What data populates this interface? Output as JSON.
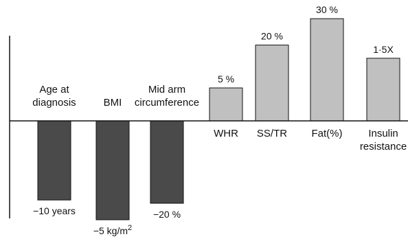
{
  "chart_data": {
    "type": "bar",
    "title": "",
    "xlabel": "",
    "ylabel": "",
    "categories": [
      "Age at diagnosis",
      "BMI",
      "Mid arm circumference",
      "WHR",
      "SS/TR",
      "Fat(%)",
      "Insulin resistance"
    ],
    "category_lines": [
      [
        "Age at",
        "diagnosis"
      ],
      [
        "BMI"
      ],
      [
        "Mid arm",
        "circumference"
      ],
      [
        "WHR"
      ],
      [
        "SS/TR"
      ],
      [
        "Fat(%)"
      ],
      [
        "Insulin",
        "resistance"
      ]
    ],
    "value_labels": [
      "−10 years",
      "−5 kg/m",
      "−20 %",
      "5 %",
      "20 %",
      "30 %",
      "1·5X"
    ],
    "value_label_superscripts": [
      "",
      "2",
      "",
      "",
      "",
      "",
      ""
    ],
    "bar_direction": [
      "down",
      "down",
      "down",
      "up",
      "up",
      "up",
      "up"
    ],
    "bar_magnitudes": [
      2.4,
      3.0,
      2.5,
      1.0,
      2.3,
      3.1,
      1.9
    ],
    "magnitude_note": "",
    "colors": {
      "negative_bars": "#4a4a4a",
      "positive_bars": "#c0c0c0",
      "bar_outline": "#111111",
      "axis": "#111111"
    },
    "grid": false,
    "legend": "none"
  }
}
